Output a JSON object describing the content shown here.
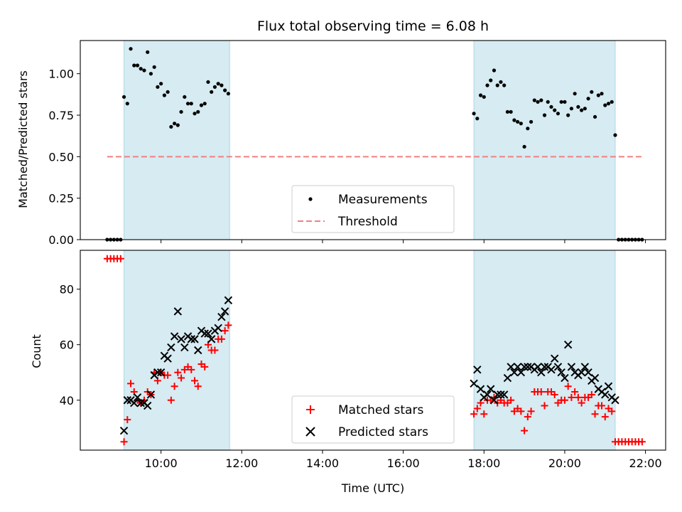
{
  "title": "Flux total observing time = 6.08 h",
  "colors": {
    "shade": "#add8e6",
    "threshold": "#f08080",
    "matched": "#ff0000",
    "predicted": "#000000",
    "measurement": "#000000"
  },
  "chart_data": [
    {
      "type": "scatter",
      "panel": "top",
      "title": "Flux total observing time = 6.08 h",
      "xlabel": "",
      "ylabel": "Matched/Predicted stars",
      "xlim": [
        "08:00",
        "22:30"
      ],
      "ylim": [
        0.0,
        1.2
      ],
      "x_ticks": [
        "10:00",
        "12:00",
        "14:00",
        "16:00",
        "18:00",
        "20:00",
        "22:00"
      ],
      "y_ticks": [
        "0.00",
        "0.25",
        "0.50",
        "0.75",
        "1.00"
      ],
      "shaded_intervals": [
        [
          "09:05",
          "11:42"
        ],
        [
          "17:45",
          "21:15"
        ]
      ],
      "legend_position": "lower center",
      "legend": [
        "Measurements",
        "Threshold"
      ],
      "threshold": {
        "name": "Threshold",
        "y": 0.5,
        "x_range": [
          "08:40",
          "21:55"
        ]
      },
      "series": [
        {
          "name": "Measurements",
          "points": [
            [
              "08:40",
              0
            ],
            [
              "08:45",
              0
            ],
            [
              "08:50",
              0
            ],
            [
              "08:55",
              0
            ],
            [
              "09:00",
              0
            ],
            [
              "09:05",
              0.86
            ],
            [
              "09:10",
              0.82
            ],
            [
              "09:15",
              1.15
            ],
            [
              "09:20",
              1.05
            ],
            [
              "09:25",
              1.05
            ],
            [
              "09:30",
              1.03
            ],
            [
              "09:35",
              1.02
            ],
            [
              "09:40",
              1.13
            ],
            [
              "09:45",
              1.0
            ],
            [
              "09:50",
              1.04
            ],
            [
              "09:55",
              0.92
            ],
            [
              "10:00",
              0.94
            ],
            [
              "10:05",
              0.87
            ],
            [
              "10:10",
              0.89
            ],
            [
              "10:15",
              0.68
            ],
            [
              "10:20",
              0.7
            ],
            [
              "10:25",
              0.69
            ],
            [
              "10:30",
              0.77
            ],
            [
              "10:35",
              0.86
            ],
            [
              "10:40",
              0.82
            ],
            [
              "10:45",
              0.82
            ],
            [
              "10:50",
              0.76
            ],
            [
              "10:55",
              0.77
            ],
            [
              "11:00",
              0.81
            ],
            [
              "11:05",
              0.82
            ],
            [
              "11:10",
              0.95
            ],
            [
              "11:15",
              0.89
            ],
            [
              "11:20",
              0.92
            ],
            [
              "11:25",
              0.94
            ],
            [
              "11:30",
              0.93
            ],
            [
              "11:35",
              0.9
            ],
            [
              "11:40",
              0.88
            ],
            [
              "17:45",
              0.76
            ],
            [
              "17:50",
              0.73
            ],
            [
              "17:55",
              0.87
            ],
            [
              "18:00",
              0.86
            ],
            [
              "18:05",
              0.93
            ],
            [
              "18:10",
              0.96
            ],
            [
              "18:15",
              1.02
            ],
            [
              "18:20",
              0.93
            ],
            [
              "18:25",
              0.95
            ],
            [
              "18:30",
              0.93
            ],
            [
              "18:35",
              0.77
            ],
            [
              "18:40",
              0.77
            ],
            [
              "18:45",
              0.72
            ],
            [
              "18:50",
              0.71
            ],
            [
              "18:55",
              0.7
            ],
            [
              "19:00",
              0.56
            ],
            [
              "19:05",
              0.67
            ],
            [
              "19:10",
              0.71
            ],
            [
              "19:15",
              0.84
            ],
            [
              "19:20",
              0.83
            ],
            [
              "19:25",
              0.84
            ],
            [
              "19:30",
              0.75
            ],
            [
              "19:35",
              0.83
            ],
            [
              "19:40",
              0.8
            ],
            [
              "19:45",
              0.78
            ],
            [
              "19:50",
              0.76
            ],
            [
              "19:55",
              0.83
            ],
            [
              "20:00",
              0.83
            ],
            [
              "20:05",
              0.75
            ],
            [
              "20:10",
              0.79
            ],
            [
              "20:15",
              0.88
            ],
            [
              "20:20",
              0.8
            ],
            [
              "20:25",
              0.78
            ],
            [
              "20:30",
              0.79
            ],
            [
              "20:35",
              0.85
            ],
            [
              "20:40",
              0.89
            ],
            [
              "20:45",
              0.74
            ],
            [
              "20:50",
              0.87
            ],
            [
              "20:55",
              0.88
            ],
            [
              "21:00",
              0.81
            ],
            [
              "21:05",
              0.82
            ],
            [
              "21:10",
              0.83
            ],
            [
              "21:15",
              0.63
            ],
            [
              "21:20",
              0
            ],
            [
              "21:25",
              0
            ],
            [
              "21:30",
              0
            ],
            [
              "21:35",
              0
            ],
            [
              "21:40",
              0
            ],
            [
              "21:45",
              0
            ],
            [
              "21:50",
              0
            ],
            [
              "21:55",
              0
            ]
          ]
        }
      ]
    },
    {
      "type": "scatter",
      "panel": "bottom",
      "xlabel": "Time (UTC)",
      "ylabel": "Count",
      "xlim": [
        "08:00",
        "22:30"
      ],
      "ylim": [
        22,
        94
      ],
      "x_ticks": [
        "10:00",
        "12:00",
        "14:00",
        "16:00",
        "18:00",
        "20:00",
        "22:00"
      ],
      "y_ticks": [
        "40",
        "60",
        "80"
      ],
      "shaded_intervals": [
        [
          "09:05",
          "11:42"
        ],
        [
          "17:45",
          "21:15"
        ]
      ],
      "legend_position": "lower center",
      "legend": [
        "Matched stars",
        "Predicted stars"
      ],
      "series": [
        {
          "name": "Matched stars",
          "marker": "plus",
          "points": [
            [
              "08:40",
              91
            ],
            [
              "08:45",
              91
            ],
            [
              "08:50",
              91
            ],
            [
              "08:55",
              91
            ],
            [
              "09:00",
              91
            ],
            [
              "09:05",
              25
            ],
            [
              "09:10",
              33
            ],
            [
              "09:15",
              46
            ],
            [
              "09:20",
              43
            ],
            [
              "09:25",
              40
            ],
            [
              "09:30",
              39
            ],
            [
              "09:35",
              40
            ],
            [
              "09:40",
              43
            ],
            [
              "09:45",
              42
            ],
            [
              "09:50",
              50
            ],
            [
              "09:55",
              47
            ],
            [
              "10:00",
              50
            ],
            [
              "10:05",
              49
            ],
            [
              "10:10",
              49
            ],
            [
              "10:15",
              40
            ],
            [
              "10:20",
              45
            ],
            [
              "10:25",
              50
            ],
            [
              "10:30",
              48
            ],
            [
              "10:35",
              51
            ],
            [
              "10:40",
              52
            ],
            [
              "10:45",
              51
            ],
            [
              "10:50",
              47
            ],
            [
              "10:55",
              45
            ],
            [
              "11:00",
              53
            ],
            [
              "11:05",
              52
            ],
            [
              "11:10",
              60
            ],
            [
              "11:15",
              58
            ],
            [
              "11:20",
              58
            ],
            [
              "11:25",
              62
            ],
            [
              "11:30",
              62
            ],
            [
              "11:35",
              65
            ],
            [
              "11:40",
              67
            ],
            [
              "17:45",
              35
            ],
            [
              "17:50",
              37
            ],
            [
              "17:55",
              39
            ],
            [
              "18:00",
              35
            ],
            [
              "18:05",
              40
            ],
            [
              "18:10",
              40
            ],
            [
              "18:15",
              41
            ],
            [
              "18:20",
              39
            ],
            [
              "18:25",
              40
            ],
            [
              "18:30",
              39
            ],
            [
              "18:35",
              39
            ],
            [
              "18:40",
              40
            ],
            [
              "18:45",
              36
            ],
            [
              "18:50",
              37
            ],
            [
              "18:55",
              36
            ],
            [
              "19:00",
              29
            ],
            [
              "19:05",
              34
            ],
            [
              "19:10",
              36
            ],
            [
              "19:15",
              43
            ],
            [
              "19:20",
              43
            ],
            [
              "19:25",
              43
            ],
            [
              "19:30",
              38
            ],
            [
              "19:35",
              43
            ],
            [
              "19:40",
              43
            ],
            [
              "19:45",
              42
            ],
            [
              "19:50",
              39
            ],
            [
              "19:55",
              40
            ],
            [
              "20:00",
              40
            ],
            [
              "20:05",
              45
            ],
            [
              "20:10",
              41
            ],
            [
              "20:15",
              43
            ],
            [
              "20:20",
              41
            ],
            [
              "20:25",
              39
            ],
            [
              "20:30",
              41
            ],
            [
              "20:35",
              41
            ],
            [
              "20:40",
              42
            ],
            [
              "20:45",
              35
            ],
            [
              "20:50",
              38
            ],
            [
              "20:55",
              38
            ],
            [
              "21:00",
              34
            ],
            [
              "21:05",
              37
            ],
            [
              "21:10",
              36
            ],
            [
              "21:15",
              25
            ],
            [
              "21:20",
              25
            ],
            [
              "21:25",
              25
            ],
            [
              "21:30",
              25
            ],
            [
              "21:35",
              25
            ],
            [
              "21:40",
              25
            ],
            [
              "21:45",
              25
            ],
            [
              "21:50",
              25
            ],
            [
              "21:55",
              25
            ]
          ]
        },
        {
          "name": "Predicted stars",
          "marker": "x",
          "points": [
            [
              "09:05",
              29
            ],
            [
              "09:10",
              40
            ],
            [
              "09:15",
              40
            ],
            [
              "09:20",
              39
            ],
            [
              "09:25",
              41
            ],
            [
              "09:30",
              39
            ],
            [
              "09:35",
              39
            ],
            [
              "09:40",
              38
            ],
            [
              "09:45",
              42
            ],
            [
              "09:50",
              49
            ],
            [
              "09:55",
              50
            ],
            [
              "10:00",
              50
            ],
            [
              "10:05",
              56
            ],
            [
              "10:10",
              55
            ],
            [
              "10:15",
              59
            ],
            [
              "10:20",
              63
            ],
            [
              "10:25",
              72
            ],
            [
              "10:30",
              62
            ],
            [
              "10:35",
              59
            ],
            [
              "10:40",
              63
            ],
            [
              "10:45",
              62
            ],
            [
              "10:50",
              62
            ],
            [
              "10:55",
              58
            ],
            [
              "11:00",
              65
            ],
            [
              "11:05",
              64
            ],
            [
              "11:10",
              64
            ],
            [
              "11:15",
              62
            ],
            [
              "11:20",
              65
            ],
            [
              "11:25",
              66
            ],
            [
              "11:30",
              70
            ],
            [
              "11:35",
              72
            ],
            [
              "11:40",
              76
            ],
            [
              "17:45",
              46
            ],
            [
              "17:50",
              51
            ],
            [
              "17:55",
              44
            ],
            [
              "18:00",
              41
            ],
            [
              "18:05",
              42
            ],
            [
              "18:10",
              44
            ],
            [
              "18:15",
              40
            ],
            [
              "18:20",
              42
            ],
            [
              "18:25",
              42
            ],
            [
              "18:30",
              42
            ],
            [
              "18:35",
              48
            ],
            [
              "18:40",
              52
            ],
            [
              "18:45",
              50
            ],
            [
              "18:50",
              52
            ],
            [
              "18:55",
              50
            ],
            [
              "19:00",
              52
            ],
            [
              "19:05",
              52
            ],
            [
              "19:10",
              52
            ],
            [
              "19:15",
              51
            ],
            [
              "19:20",
              52
            ],
            [
              "19:25",
              50
            ],
            [
              "19:30",
              52
            ],
            [
              "19:35",
              52
            ],
            [
              "19:40",
              51
            ],
            [
              "19:45",
              55
            ],
            [
              "19:50",
              52
            ],
            [
              "19:55",
              50
            ],
            [
              "20:00",
              48
            ],
            [
              "20:05",
              60
            ],
            [
              "20:10",
              52
            ],
            [
              "20:15",
              50
            ],
            [
              "20:20",
              49
            ],
            [
              "20:25",
              50
            ],
            [
              "20:30",
              52
            ],
            [
              "20:35",
              50
            ],
            [
              "20:40",
              47
            ],
            [
              "20:45",
              48
            ],
            [
              "20:50",
              44
            ],
            [
              "20:55",
              43
            ],
            [
              "21:00",
              42
            ],
            [
              "21:05",
              45
            ],
            [
              "21:10",
              41
            ],
            [
              "21:15",
              40
            ]
          ]
        }
      ]
    }
  ]
}
